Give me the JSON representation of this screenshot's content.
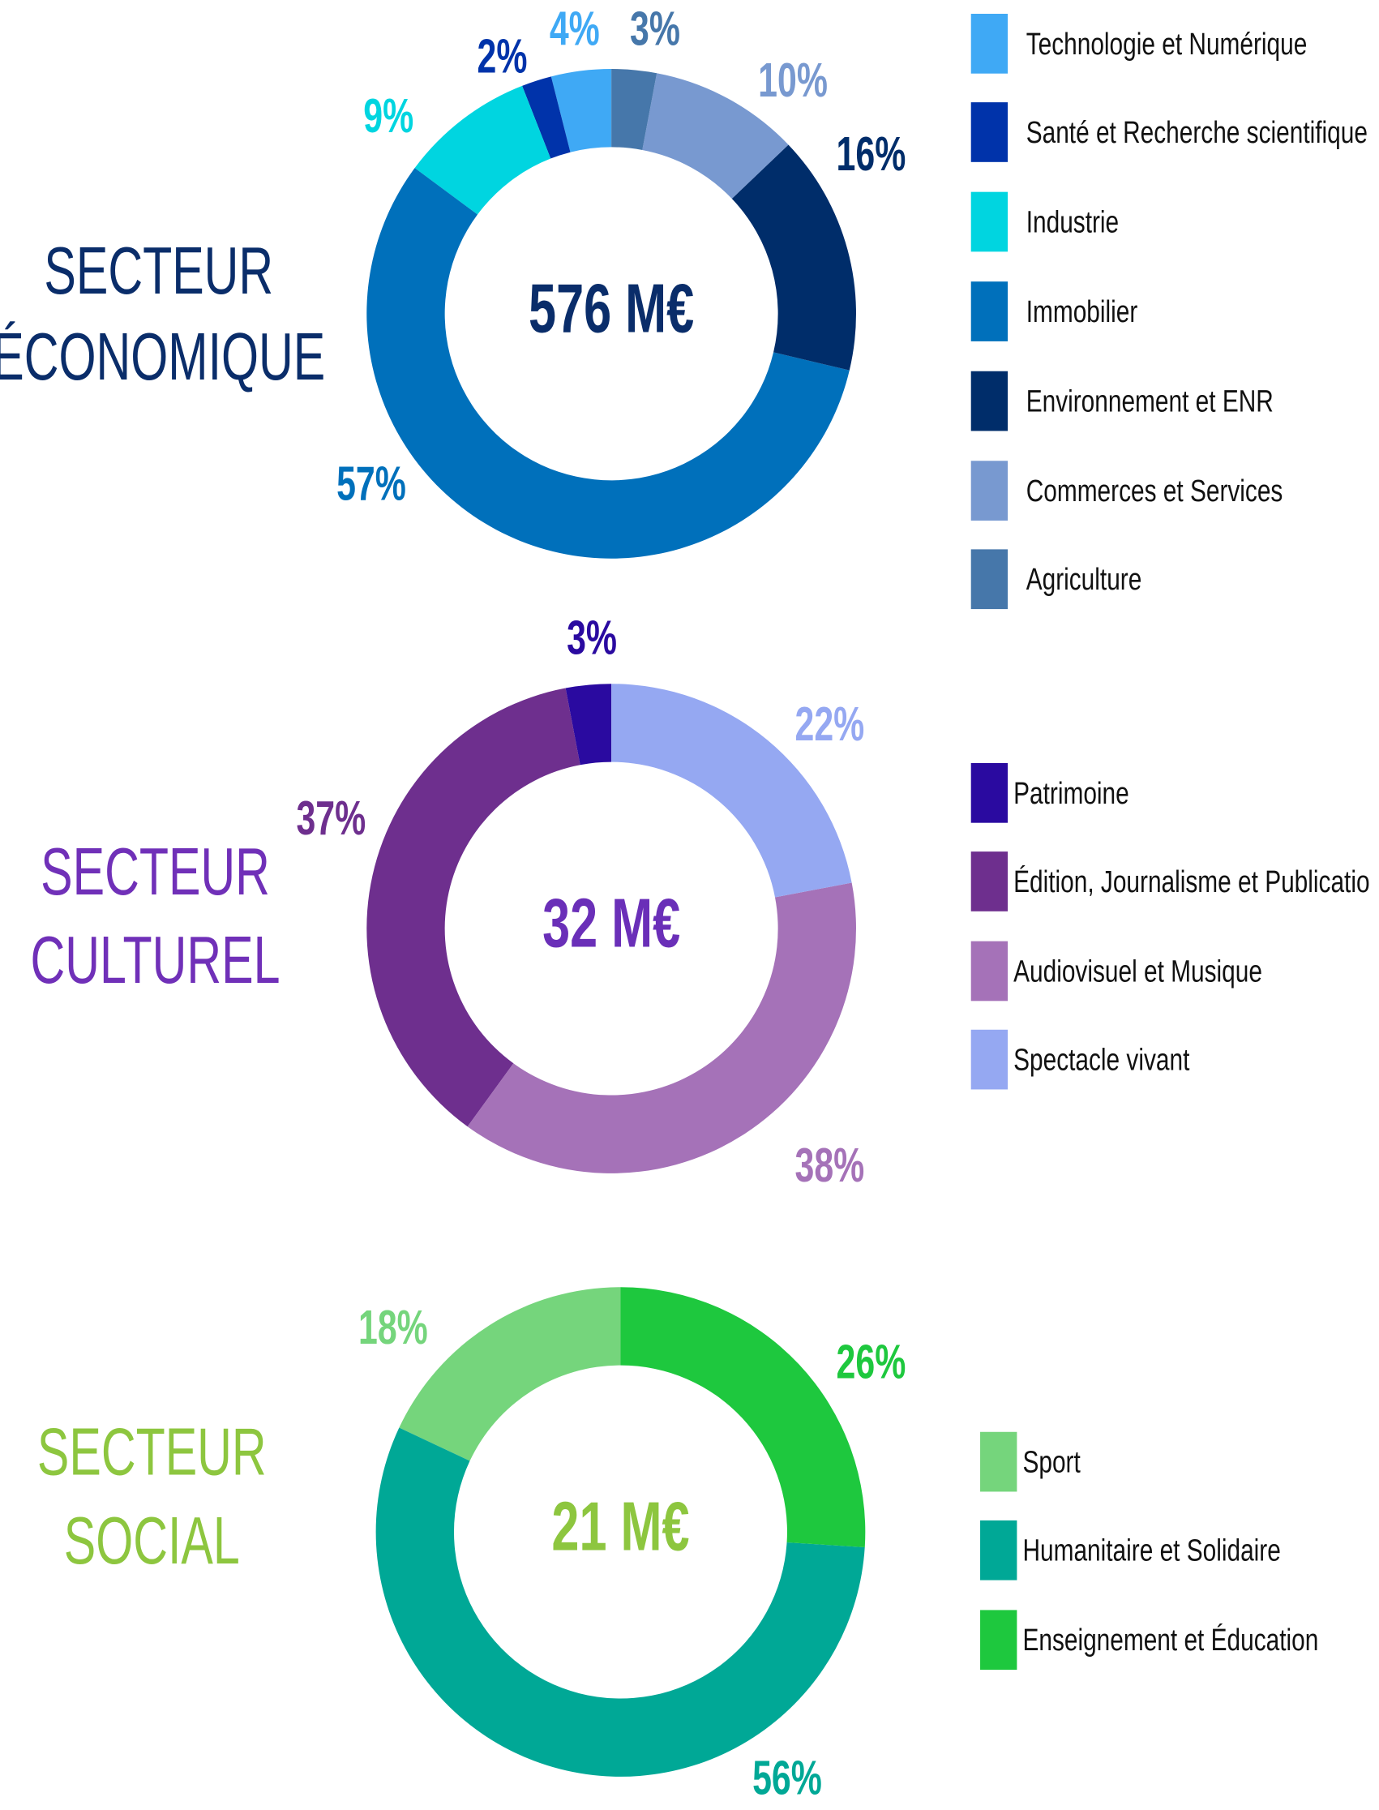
{
  "chart_data": [
    {
      "type": "donut",
      "title": "SECTEUR ÉCONOMIQUE",
      "title_color": "#0a2d6a",
      "center_label": "576 M€",
      "center_color": "#0a2d6a",
      "categories": [
        "Technologie et Numérique",
        "Santé et Recherche scientifique",
        "Industrie",
        "Immobilier",
        "Environnement et ENR",
        "Commerces et Services",
        "Agriculture"
      ],
      "values": [
        4,
        2,
        9,
        57,
        16,
        10,
        3
      ],
      "value_labels": [
        "4%",
        "2%",
        "9%",
        "57%",
        "16%",
        "10%",
        "3%"
      ],
      "colors": [
        "#3fa9f5",
        "#0033aa",
        "#00d5e0",
        "#0070bb",
        "#002d6a",
        "#7899d0",
        "#4677aa"
      ]
    },
    {
      "type": "donut",
      "title": "SECTEUR CULTUREL",
      "title_color": "#7030b8",
      "center_label": "32 M€",
      "center_color": "#6a2fb8",
      "categories": [
        "Patrimoine",
        "Édition, Journalisme et Publicatio",
        "Audiovisuel et Musique",
        "Spectacle vivant"
      ],
      "values": [
        3,
        37,
        38,
        22
      ],
      "value_labels": [
        "3%",
        "37%",
        "38%",
        "22%"
      ],
      "colors": [
        "#2a0aa0",
        "#6e2f8e",
        "#a572b8",
        "#95a8f2"
      ]
    },
    {
      "type": "donut",
      "title": "SECTEUR SOCIAL",
      "title_color": "#8dc63f",
      "center_label": "21 M€",
      "center_color": "#8dc63f",
      "categories": [
        "Sport",
        "Humanitaire et Solidaire",
        "Enseignement et Éducation"
      ],
      "values": [
        18,
        56,
        26
      ],
      "value_labels": [
        "18%",
        "56%",
        "26%"
      ],
      "colors": [
        "#75d57c",
        "#00a896",
        "#1ec83e"
      ]
    }
  ]
}
